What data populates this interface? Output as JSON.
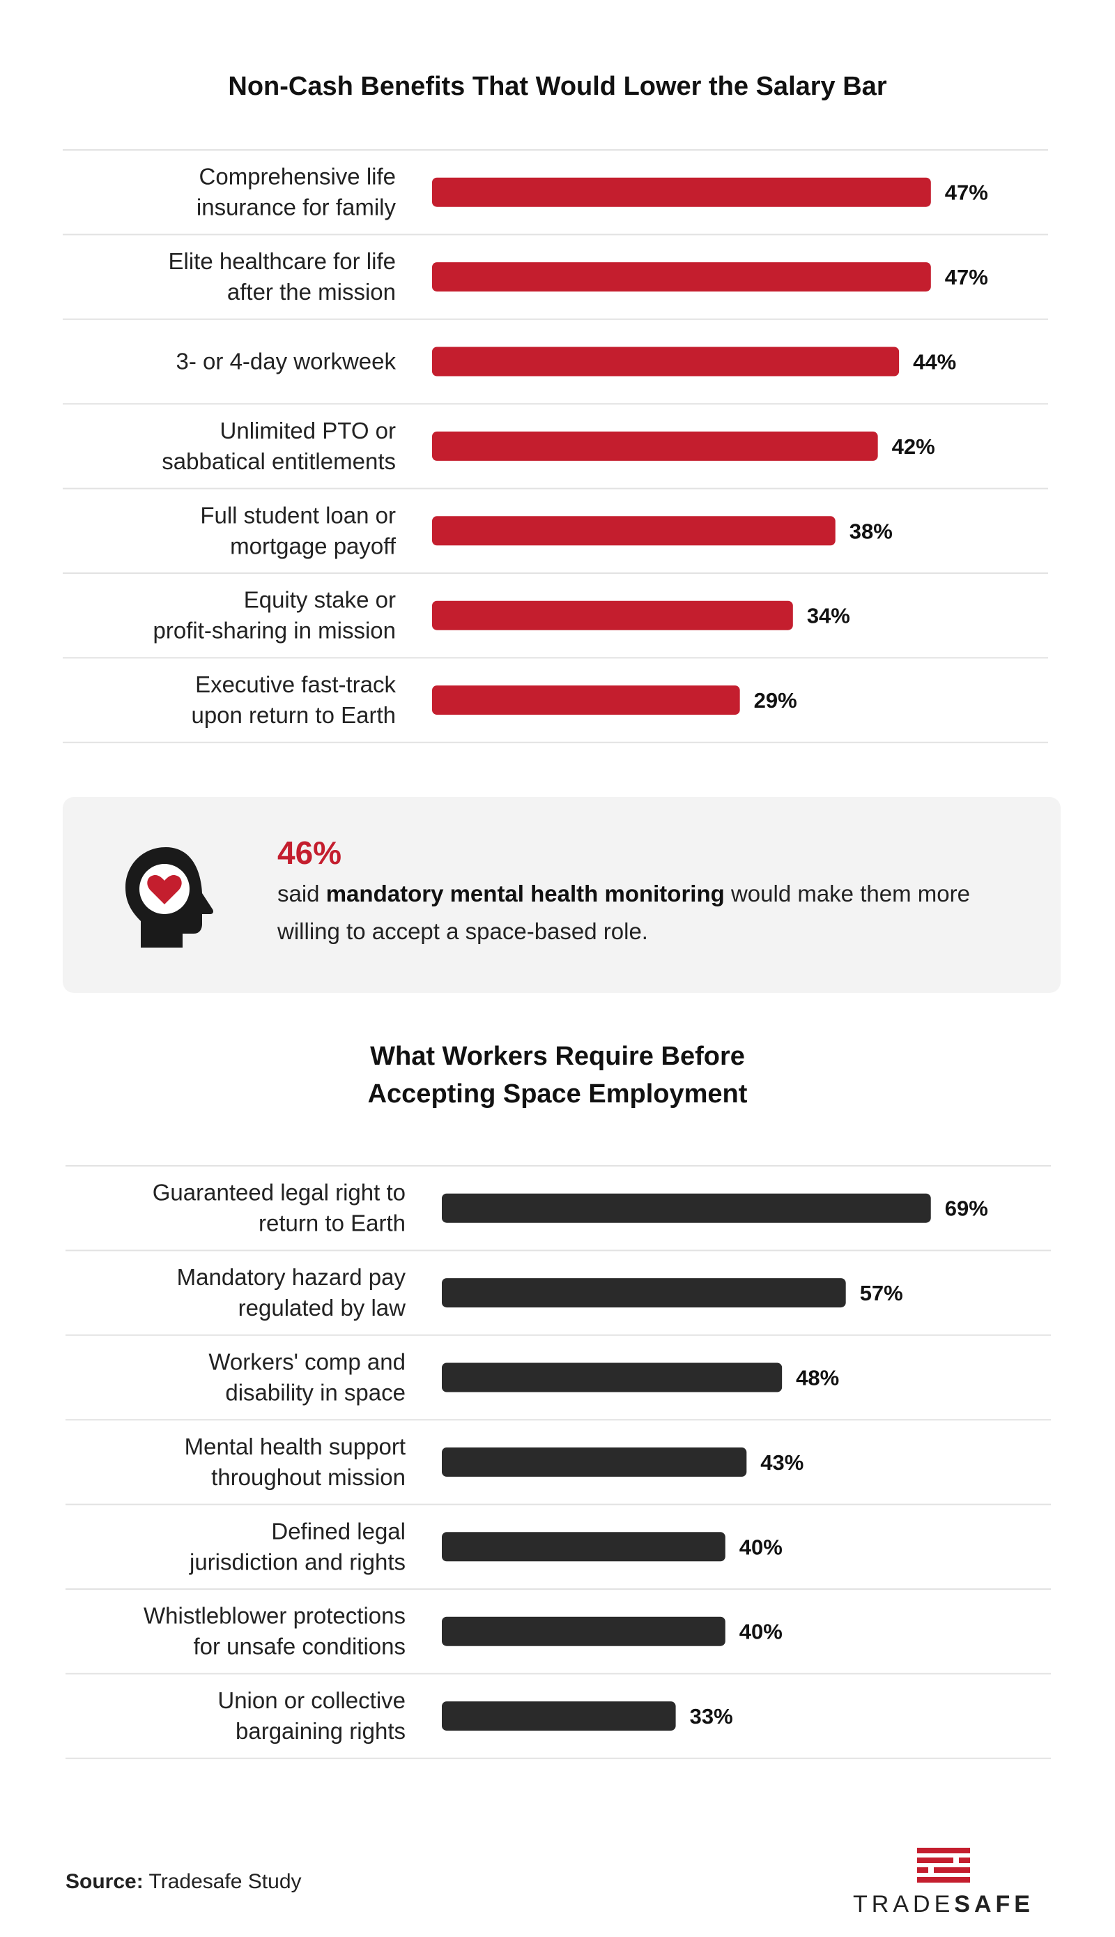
{
  "chart_data": [
    {
      "type": "bar",
      "orientation": "horizontal",
      "title": "Non-Cash Benefits That Would Lower the Salary Bar",
      "categories": [
        [
          "Comprehensive life",
          "insurance for family"
        ],
        [
          "Elite healthcare for life",
          "after the mission"
        ],
        [
          "3- or 4-day workweek"
        ],
        [
          "Unlimited PTO or",
          "sabbatical entitlements"
        ],
        [
          "Full student loan or",
          "mortgage payoff"
        ],
        [
          "Equity stake or",
          "profit-sharing in mission"
        ],
        [
          "Executive fast-track",
          "upon return to Earth"
        ]
      ],
      "values": [
        47,
        47,
        44,
        42,
        38,
        34,
        29
      ],
      "value_labels": [
        "47%",
        "47%",
        "44%",
        "42%",
        "38%",
        "34%",
        "29%"
      ],
      "unit": "%",
      "bar_color": "#c41e2e"
    },
    {
      "type": "bar",
      "orientation": "horizontal",
      "title": "What Workers Require Before Accepting Space Employment",
      "title_lines": [
        "What Workers Require Before",
        "Accepting Space Employment"
      ],
      "categories": [
        [
          "Guaranteed legal right to",
          "return to Earth"
        ],
        [
          "Mandatory hazard pay",
          "regulated by law"
        ],
        [
          "Workers' comp and",
          "disability in space"
        ],
        [
          "Mental health support",
          "throughout mission"
        ],
        [
          "Defined legal",
          "jurisdiction and rights"
        ],
        [
          "Whistleblower protections",
          "for unsafe conditions"
        ],
        [
          "Union or collective",
          "bargaining rights"
        ]
      ],
      "values": [
        69,
        57,
        48,
        43,
        40,
        40,
        33
      ],
      "value_labels": [
        "69%",
        "57%",
        "48%",
        "43%",
        "40%",
        "40%",
        "33%"
      ],
      "unit": "%",
      "bar_color": "#2a2a2a"
    }
  ],
  "callout": {
    "stat": "46%",
    "text_before": "said ",
    "text_bold": "mandatory mental health monitoring",
    "text_after": " would make them more willing to accept a space-based role.",
    "icon": "head-heart-icon",
    "background": "#f3f3f3",
    "accent": "#c41e2e"
  },
  "source": {
    "label": "Source:",
    "text": " Tradesafe Study"
  },
  "logo": {
    "icon": "tradesafe-logo-mark",
    "part1": "TRADE",
    "part2": "SAFE",
    "color": "#c41e2e"
  },
  "colors": {
    "red": "#c41e2e",
    "dark": "#2a2a2a",
    "divider": "#e2e2e2"
  }
}
